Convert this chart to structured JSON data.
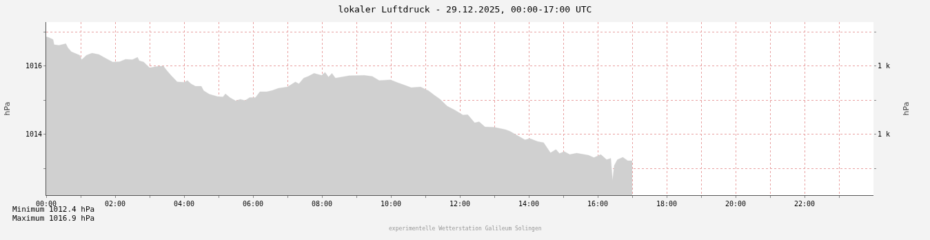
{
  "chart_data": {
    "type": "area",
    "title": "lokaler Luftdruck - 29.12.2025, 00:00-17:00 UTC",
    "ylabel": "hPa",
    "y2label": "hPa",
    "x": [
      0,
      0.07,
      0.2,
      0.23,
      0.37,
      0.57,
      0.63,
      0.73,
      0.97,
      1.03,
      1.17,
      1.33,
      1.53,
      1.67,
      1.93,
      2.13,
      2.3,
      2.5,
      2.65,
      2.7,
      2.83,
      3.0,
      3.23,
      3.4,
      3.5,
      3.63,
      3.8,
      4.0,
      4.1,
      4.2,
      4.33,
      4.5,
      4.57,
      4.73,
      4.97,
      5.13,
      5.2,
      5.33,
      5.5,
      5.63,
      5.77,
      5.9,
      6.07,
      6.2,
      6.4,
      6.57,
      6.73,
      7.0,
      7.23,
      7.33,
      7.47,
      7.6,
      7.77,
      7.99,
      8.09,
      8.19,
      8.29,
      8.39,
      8.79,
      9.23,
      9.46,
      9.66,
      9.99,
      10.19,
      10.43,
      10.59,
      10.86,
      11.09,
      11.26,
      11.43,
      11.63,
      11.86,
      12.09,
      12.23,
      12.43,
      12.56,
      12.73,
      13.0,
      13.33,
      13.46,
      13.89,
      14.03,
      14.26,
      14.43,
      14.63,
      14.79,
      14.89,
      15.03,
      15.19,
      15.39,
      15.73,
      15.89,
      16.09,
      16.26,
      16.38,
      16.43,
      16.48,
      16.57,
      16.73,
      16.87,
      17.0
    ],
    "series": [
      {
        "color": "#d0d0d0",
        "values": [
          1016.86,
          1016.84,
          1016.78,
          1016.63,
          1016.61,
          1016.66,
          1016.54,
          1016.42,
          1016.32,
          1016.19,
          1016.32,
          1016.38,
          1016.34,
          1016.26,
          1016.12,
          1016.13,
          1016.2,
          1016.19,
          1016.26,
          1016.16,
          1016.12,
          1015.95,
          1015.99,
          1016.0,
          1015.87,
          1015.72,
          1015.54,
          1015.53,
          1015.58,
          1015.48,
          1015.41,
          1015.41,
          1015.28,
          1015.18,
          1015.11,
          1015.1,
          1015.19,
          1015.08,
          1014.98,
          1015.03,
          1014.99,
          1015.08,
          1015.08,
          1015.25,
          1015.25,
          1015.29,
          1015.35,
          1015.39,
          1015.54,
          1015.48,
          1015.65,
          1015.7,
          1015.79,
          1015.73,
          1015.82,
          1015.68,
          1015.79,
          1015.65,
          1015.72,
          1015.73,
          1015.7,
          1015.58,
          1015.6,
          1015.52,
          1015.43,
          1015.37,
          1015.39,
          1015.28,
          1015.15,
          1015.03,
          1014.83,
          1014.71,
          1014.57,
          1014.58,
          1014.34,
          1014.37,
          1014.22,
          1014.21,
          1014.14,
          1014.09,
          1013.84,
          1013.88,
          1013.79,
          1013.76,
          1013.46,
          1013.56,
          1013.44,
          1013.5,
          1013.41,
          1013.45,
          1013.39,
          1013.32,
          1013.41,
          1013.26,
          1013.3,
          1012.65,
          1013.09,
          1013.26,
          1013.33,
          1013.23,
          1013.23
        ]
      }
    ],
    "xlim": [
      0,
      24
    ],
    "xticks": [
      {
        "value": 0,
        "label": "00:00"
      },
      {
        "value": 1,
        "label": null
      },
      {
        "value": 2,
        "label": "02:00"
      },
      {
        "value": 3,
        "label": null
      },
      {
        "value": 4,
        "label": "04:00"
      },
      {
        "value": 5,
        "label": null
      },
      {
        "value": 6,
        "label": "06:00"
      },
      {
        "value": 7,
        "label": null
      },
      {
        "value": 8,
        "label": "08:00"
      },
      {
        "value": 9,
        "label": null
      },
      {
        "value": 10,
        "label": "10:00"
      },
      {
        "value": 11,
        "label": null
      },
      {
        "value": 12,
        "label": "12:00"
      },
      {
        "value": 13,
        "label": null
      },
      {
        "value": 14,
        "label": "14:00"
      },
      {
        "value": 15,
        "label": null
      },
      {
        "value": 16,
        "label": "16:00"
      },
      {
        "value": 17,
        "label": null
      },
      {
        "value": 18,
        "label": "18:00"
      },
      {
        "value": 19,
        "label": null
      },
      {
        "value": 20,
        "label": "20:00"
      },
      {
        "value": 21,
        "label": null
      },
      {
        "value": 22,
        "label": "22:00"
      },
      {
        "value": 23,
        "label": null
      }
    ],
    "ylim": [
      1012.22,
      1017.29
    ],
    "yticks": [
      {
        "value": 1013,
        "label": null
      },
      1014,
      {
        "value": 1015,
        "label": null
      },
      1016,
      {
        "value": 1017,
        "label": null
      }
    ],
    "y2lim": [
      1012.22,
      1017.29
    ],
    "y2ticks": [
      {
        "value": 1013,
        "label": null
      },
      {
        "value": 1014,
        "label": "1 k"
      },
      {
        "value": 1015,
        "label": null
      },
      {
        "value": 1016,
        "label": "1 k"
      },
      {
        "value": 1017,
        "label": null
      }
    ],
    "grid": true,
    "marker": "none",
    "line_style": "solid",
    "annotations": [
      "Minimum 1012.4 hPa",
      "Maximum 1016.9 hPa",
      "experimentelle Wetterstation Galileum Solingen"
    ]
  }
}
